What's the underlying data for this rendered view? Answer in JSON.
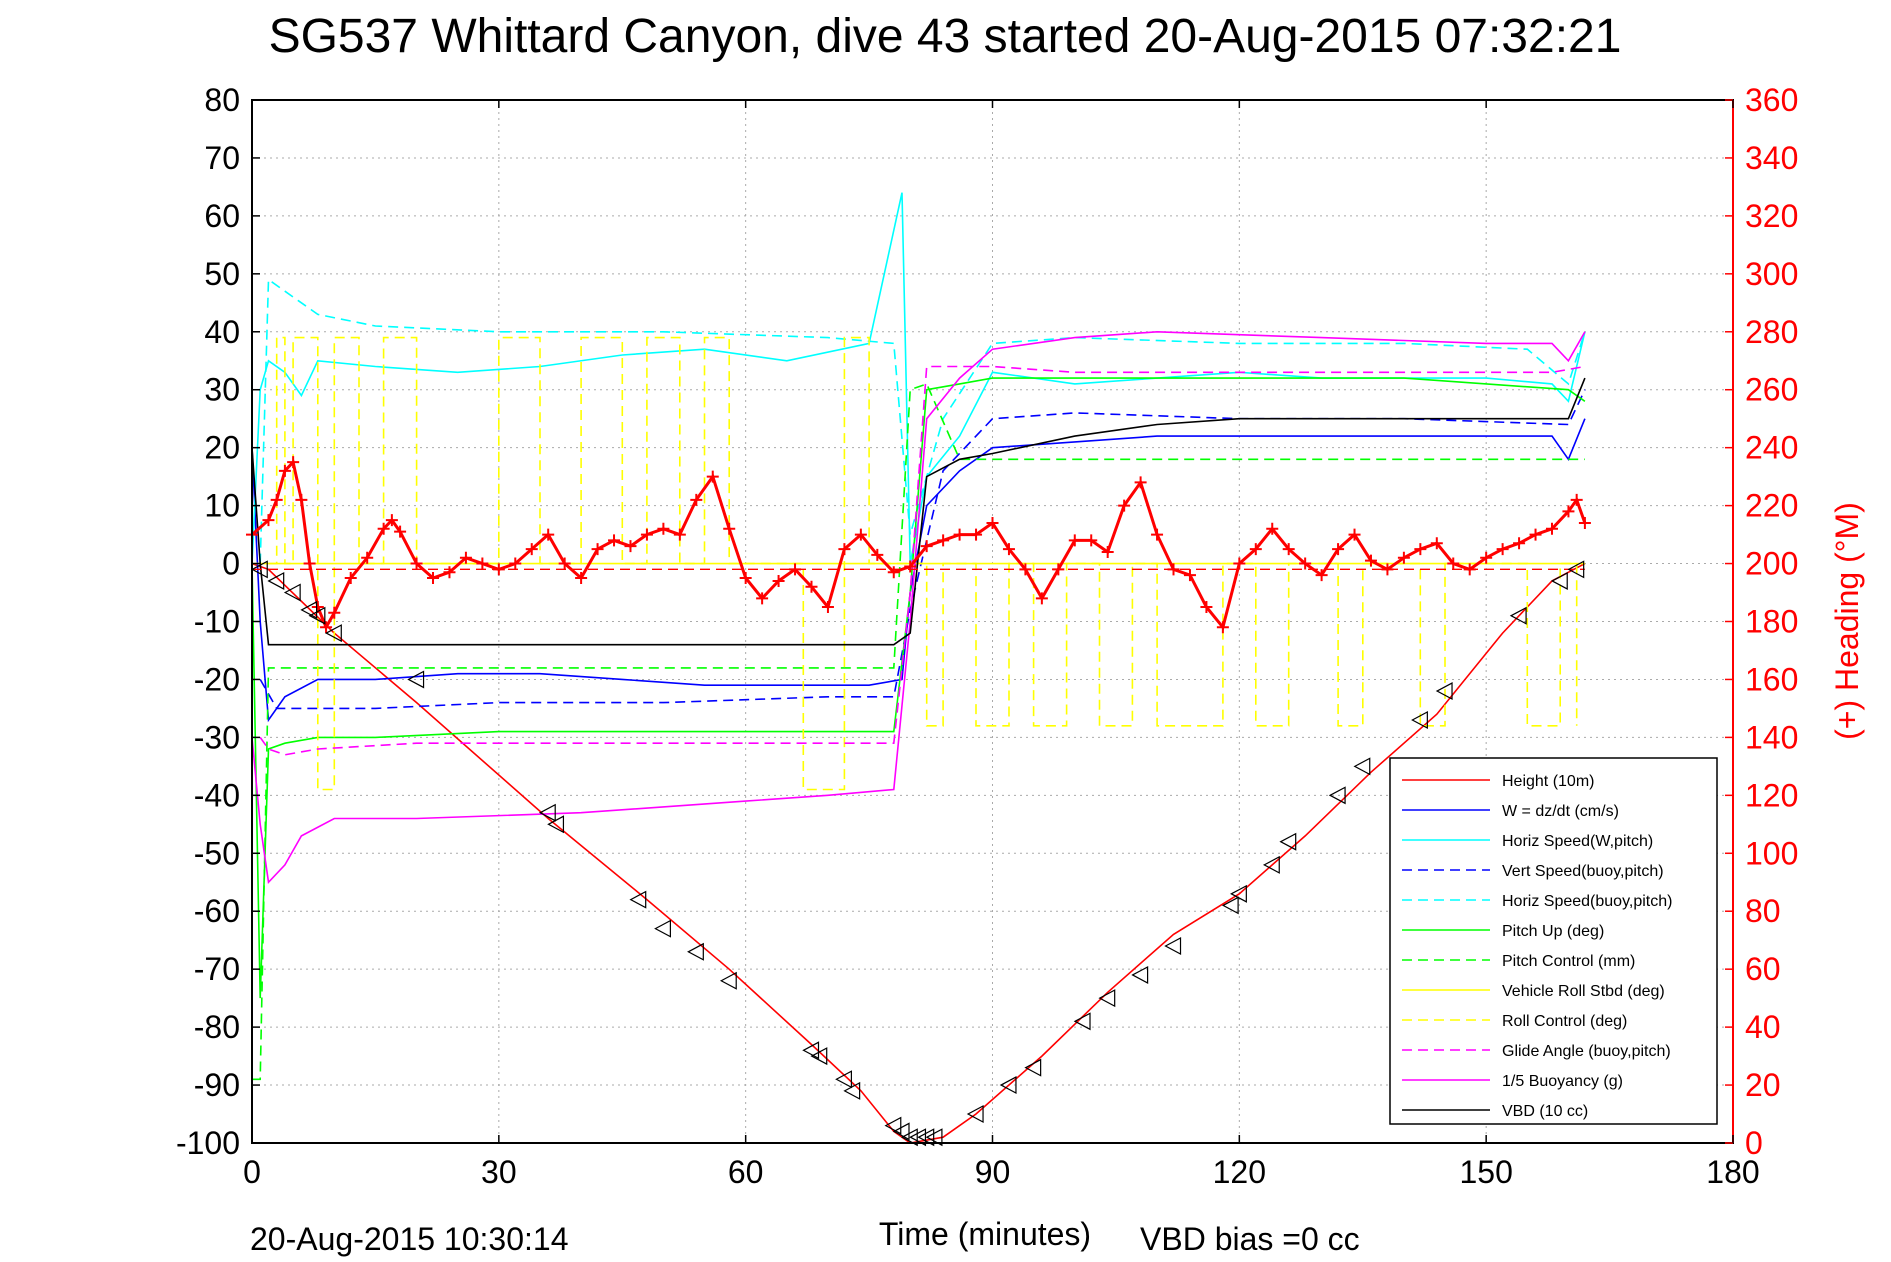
{
  "chart_data": {
    "type": "line",
    "title": "SG537 Whittard Canyon, dive 43 started 20-Aug-2015 07:32:21",
    "xlabel": "Time (minutes)",
    "ylabel": "",
    "y2label": "(+) Heading (°M)",
    "xlim": [
      0,
      180
    ],
    "ylim": [
      -100,
      80
    ],
    "y2lim": [
      0,
      360
    ],
    "xticks": [
      "0",
      "30",
      "60",
      "90",
      "120",
      "150",
      "180"
    ],
    "yticks": [
      "80",
      "70",
      "60",
      "50",
      "40",
      "30",
      "20",
      "10",
      "0",
      "-10",
      "-20",
      "-30",
      "-40",
      "-50",
      "-60",
      "-70",
      "-80",
      "-90",
      "-100"
    ],
    "y2ticks": [
      "360",
      "340",
      "320",
      "300",
      "280",
      "260",
      "240",
      "220",
      "200",
      "180",
      "160",
      "140",
      "120",
      "100",
      "80",
      "60",
      "40",
      "20",
      "0"
    ],
    "grid": true,
    "legend_position": "bottom-right",
    "footer_left": "20-Aug-2015 10:30:14",
    "footer_right": "VBD bias =0 cc",
    "series": [
      {
        "name": "Height (10m)",
        "color": "#ff0000",
        "dash": "solid",
        "x": [
          0,
          2,
          10,
          20,
          36,
          48,
          58,
          68,
          74,
          78,
          80,
          84,
          88,
          96,
          104,
          112,
          120,
          128,
          136,
          144,
          152,
          158,
          162
        ],
        "y": [
          0,
          -1,
          -12,
          -24,
          -44,
          -58,
          -70,
          -83,
          -91,
          -98,
          -100,
          -99,
          -95,
          -85,
          -74,
          -64,
          -57,
          -47,
          -36,
          -26,
          -12,
          -3,
          0
        ]
      },
      {
        "name": "W = dz/dt (cm/s)",
        "color": "#0000ff",
        "dash": "solid",
        "x": [
          0,
          1,
          2,
          4,
          8,
          15,
          25,
          35,
          45,
          55,
          65,
          75,
          79,
          80,
          82,
          86,
          90,
          100,
          110,
          120,
          130,
          140,
          150,
          158,
          160,
          162
        ],
        "y": [
          20,
          -10,
          -27,
          -23,
          -20,
          -20,
          -19,
          -19,
          -20,
          -21,
          -21,
          -21,
          -20,
          -5,
          10,
          16,
          20,
          21,
          22,
          22,
          22,
          22,
          22,
          22,
          18,
          25
        ]
      },
      {
        "name": "Horiz Speed(W,pitch)",
        "color": "#00ffff",
        "dash": "solid",
        "x": [
          0,
          1,
          2,
          4,
          6,
          8,
          15,
          25,
          35,
          45,
          55,
          65,
          75,
          79,
          80,
          82,
          86,
          90,
          100,
          110,
          120,
          130,
          140,
          150,
          158,
          160,
          162
        ],
        "y": [
          0,
          30,
          35,
          33,
          29,
          35,
          34,
          33,
          34,
          36,
          37,
          35,
          38,
          64,
          0,
          15,
          22,
          33,
          31,
          32,
          33,
          32,
          32,
          32,
          31,
          28,
          40
        ]
      },
      {
        "name": "Vert Speed(buoy,pitch)",
        "color": "#0000ff",
        "dash": "dashed",
        "x": [
          1,
          3,
          8,
          15,
          30,
          50,
          70,
          78,
          80,
          84,
          90,
          100,
          120,
          140,
          160,
          162
        ],
        "y": [
          -20,
          -25,
          -25,
          -25,
          -24,
          -24,
          -23,
          -23,
          -8,
          16,
          25,
          26,
          25,
          25,
          24,
          30
        ]
      },
      {
        "name": "Horiz Speed(buoy,pitch)",
        "color": "#00ffff",
        "dash": "dashed",
        "x": [
          1,
          2,
          4,
          8,
          15,
          30,
          50,
          70,
          78,
          80,
          84,
          90,
          100,
          120,
          140,
          155,
          160,
          162
        ],
        "y": [
          0,
          49,
          47,
          43,
          41,
          40,
          40,
          39,
          38,
          5,
          25,
          38,
          39,
          38,
          38,
          37,
          31,
          40
        ]
      },
      {
        "name": "Pitch Up (deg)",
        "color": "#00ff00",
        "dash": "solid",
        "x": [
          0,
          1,
          2,
          4,
          8,
          15,
          30,
          50,
          70,
          78,
          80,
          82,
          86,
          90,
          100,
          120,
          140,
          160,
          162
        ],
        "y": [
          0,
          -75,
          -32,
          -31,
          -30,
          -30,
          -29,
          -29,
          -29,
          -29,
          -5,
          30,
          31,
          32,
          32,
          32,
          32,
          30,
          28
        ]
      },
      {
        "name": "Pitch Control (mm)",
        "color": "#00ff00",
        "dash": "dashed",
        "x": [
          0,
          1,
          2,
          8,
          30,
          60,
          78,
          80,
          82,
          86,
          90,
          120,
          140,
          158,
          162
        ],
        "y": [
          -89,
          -89,
          -18,
          -18,
          -18,
          -18,
          -18,
          30,
          31,
          18,
          18,
          18,
          18,
          18,
          18
        ]
      },
      {
        "name": "Vehicle Roll Stbd (deg)",
        "color": "#ffff00",
        "dash": "solid",
        "x": [
          0,
          10,
          20,
          40,
          60,
          80,
          100,
          120,
          140,
          160,
          162
        ],
        "y": [
          0,
          0,
          0,
          0,
          0,
          0,
          0,
          0,
          0,
          0,
          0
        ]
      },
      {
        "name": "Roll Control (deg)",
        "color": "#ffff00",
        "dash": "dashed",
        "x": [
          2,
          3,
          3,
          4,
          4,
          5,
          5,
          8,
          8,
          10,
          10,
          13,
          13,
          16,
          16,
          20,
          20,
          30,
          30,
          35,
          35,
          40,
          40,
          45,
          45,
          48,
          48,
          52,
          52,
          55,
          55,
          58,
          58,
          67,
          67,
          72,
          72,
          75,
          75,
          82,
          82,
          84,
          84,
          88,
          88,
          92,
          92,
          95,
          95,
          99,
          99,
          103,
          103,
          107,
          107,
          110,
          110,
          118,
          118,
          122,
          122,
          126,
          126,
          132,
          132,
          135,
          135,
          142,
          142,
          145,
          145,
          155,
          155,
          159,
          159,
          161,
          161
        ],
        "y": [
          0,
          0,
          39,
          39,
          0,
          0,
          39,
          39,
          -39,
          -39,
          39,
          39,
          0,
          0,
          39,
          39,
          0,
          0,
          39,
          39,
          0,
          0,
          39,
          39,
          0,
          0,
          39,
          39,
          0,
          0,
          39,
          39,
          0,
          0,
          -39,
          -39,
          39,
          39,
          0,
          0,
          -28,
          -28,
          0,
          0,
          -28,
          -28,
          0,
          0,
          -28,
          -28,
          0,
          0,
          -28,
          -28,
          0,
          0,
          -28,
          -28,
          0,
          0,
          -28,
          -28,
          0,
          0,
          -28,
          -28,
          0,
          0,
          -28,
          -28,
          0,
          0,
          -28,
          -28,
          0,
          0,
          -28
        ]
      },
      {
        "name": "Glide Angle (buoy,pitch)",
        "color": "#ff00ff",
        "dash": "dashed",
        "x": [
          1,
          2,
          4,
          8,
          20,
          40,
          60,
          78,
          80,
          82,
          86,
          90,
          100,
          120,
          140,
          158,
          162
        ],
        "y": [
          -30,
          -32,
          -33,
          -32,
          -31,
          -31,
          -31,
          -31,
          -5,
          34,
          34,
          34,
          33,
          33,
          33,
          33,
          34
        ]
      },
      {
        "name": "1/5 Buoyancy (g)",
        "color": "#ff00ff",
        "dash": "solid",
        "x": [
          0,
          1,
          2,
          4,
          6,
          10,
          20,
          40,
          60,
          70,
          78,
          80,
          82,
          86,
          90,
          100,
          110,
          130,
          150,
          158,
          160,
          162
        ],
        "y": [
          -30,
          -45,
          -55,
          -52,
          -47,
          -44,
          -44,
          -43,
          -41,
          -40,
          -39,
          -10,
          25,
          32,
          37,
          39,
          40,
          39,
          38,
          38,
          35,
          40
        ]
      },
      {
        "name": "VBD (10 cc)",
        "color": "#000000",
        "dash": "solid",
        "x": [
          0,
          1,
          2,
          78,
          80,
          82,
          86,
          90,
          100,
          110,
          120,
          140,
          150,
          158,
          160,
          162
        ],
        "y": [
          20,
          0,
          -14,
          -14,
          -12,
          15,
          18,
          19,
          22,
          24,
          25,
          25,
          25,
          25,
          25,
          32
        ]
      }
    ],
    "heading_series": {
      "name": "(+) Heading",
      "color": "#ff0000",
      "marker": "+",
      "x": [
        0,
        2,
        3,
        4,
        5,
        6,
        7,
        8,
        9,
        10,
        12,
        14,
        16,
        17,
        18,
        20,
        22,
        24,
        26,
        28,
        30,
        32,
        34,
        36,
        38,
        40,
        42,
        44,
        46,
        48,
        50,
        52,
        54,
        56,
        58,
        60,
        62,
        64,
        66,
        68,
        70,
        72,
        74,
        76,
        78,
        80,
        82,
        84,
        86,
        88,
        90,
        92,
        94,
        96,
        98,
        100,
        102,
        104,
        106,
        108,
        110,
        112,
        114,
        116,
        118,
        120,
        122,
        124,
        126,
        128,
        130,
        132,
        134,
        136,
        138,
        140,
        142,
        144,
        146,
        148,
        150,
        152,
        154,
        156,
        158,
        160,
        161,
        162
      ],
      "y": [
        210,
        215,
        222,
        232,
        235,
        222,
        200,
        185,
        178,
        183,
        195,
        202,
        212,
        215,
        211,
        200,
        195,
        197,
        202,
        200,
        198,
        200,
        205,
        210,
        200,
        195,
        205,
        208,
        206,
        210,
        212,
        210,
        222,
        230,
        212,
        195,
        188,
        194,
        198,
        192,
        185,
        205,
        210,
        203,
        197,
        199,
        206,
        208,
        210,
        210,
        214,
        205,
        198,
        188,
        198,
        208,
        208,
        204,
        220,
        228,
        210,
        198,
        196,
        185,
        178,
        200,
        205,
        212,
        205,
        200,
        196,
        205,
        210,
        201,
        198,
        202,
        205,
        207,
        200,
        198,
        202,
        205,
        207,
        210,
        212,
        218,
        222,
        214
      ]
    },
    "heading_ref": {
      "color": "#ff0000",
      "dash": "dashed",
      "y": 198
    },
    "markers": {
      "symbol": "triangle-left",
      "x": [
        1,
        3,
        5,
        7,
        8,
        10,
        20,
        36,
        37,
        47,
        50,
        54,
        58,
        68,
        69,
        72,
        73,
        78,
        79,
        80,
        81,
        82,
        83,
        88,
        92,
        95,
        101,
        104,
        108,
        112,
        119,
        120,
        124,
        126,
        132,
        135,
        142,
        145,
        154,
        159,
        161
      ],
      "y": [
        -1,
        -3,
        -5,
        -8,
        -9,
        -12,
        -20,
        -43,
        -45,
        -58,
        -63,
        -67,
        -72,
        -84,
        -85,
        -89,
        -91,
        -97,
        -98,
        -99,
        -99,
        -99,
        -99,
        -95,
        -90,
        -87,
        -79,
        -75,
        -71,
        -66,
        -59,
        -57,
        -52,
        -48,
        -40,
        -35,
        -27,
        -22,
        -9,
        -3,
        -1
      ]
    }
  }
}
